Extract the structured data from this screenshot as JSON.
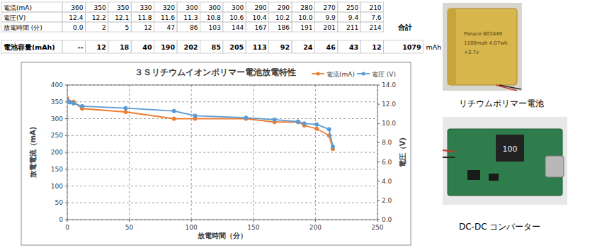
{
  "table": {
    "rows": [
      {
        "label": "電流(mA)",
        "cells": [
          "360",
          "350",
          "350",
          "330",
          "320",
          "300",
          "300",
          "300",
          "290",
          "290",
          "280",
          "270",
          "250",
          "210"
        ]
      },
      {
        "label": "電圧(V)",
        "cells": [
          "12.4",
          "12.2",
          "12.1",
          "11.8",
          "11.6",
          "11.3",
          "10.8",
          "10.6",
          "10.4",
          "10.2",
          "10.0",
          "9.9",
          "9.4",
          "7.6"
        ]
      },
      {
        "label": "放電時間 (分)",
        "cells": [
          "0.0",
          "2",
          "5",
          "12",
          "47",
          "86",
          "103",
          "144",
          "167",
          "186",
          "191",
          "201",
          "211",
          "214"
        ]
      },
      {
        "label": "電池容量(mAh)",
        "cells": [
          "--",
          "12",
          "18",
          "40",
          "190",
          "202",
          "85",
          "205",
          "113",
          "92",
          "24",
          "46",
          "43",
          "12"
        ]
      }
    ],
    "total_label": "合計",
    "total_value": "1079",
    "total_unit": "mAh"
  },
  "chart_data": {
    "type": "line",
    "title": "３Ｓリチウムイオンポリマー電池放電特性",
    "x_label": "放電時間（分）",
    "y_label": "放電電流（mA)",
    "y2_label": "電圧（V)",
    "x": [
      0,
      2,
      5,
      12,
      47,
      86,
      103,
      144,
      167,
      186,
      191,
      201,
      211,
      214
    ],
    "xlim": [
      0,
      250
    ],
    "xticks": [
      0,
      50,
      100,
      150,
      200,
      250
    ],
    "ylim": [
      0,
      400
    ],
    "yticks": [
      0,
      50,
      100,
      150,
      200,
      250,
      300,
      350,
      400
    ],
    "y2lim": [
      0,
      14
    ],
    "y2ticks": [
      {
        "value": 0,
        "label": "0.0"
      },
      {
        "value": 2,
        "label": "2.0"
      },
      {
        "value": 4,
        "label": "4.0"
      },
      {
        "value": 6,
        "label": "6.0"
      },
      {
        "value": 8,
        "label": "8.0"
      },
      {
        "value": 10,
        "label": "10.0"
      },
      {
        "value": 12,
        "label": "12.0"
      },
      {
        "value": 14,
        "label": "14.0"
      }
    ],
    "grid": true,
    "legend": "top-right",
    "series": [
      {
        "name": "電流(mA)",
        "color": "#ed7d31",
        "marker": "circle",
        "values": [
          360,
          350,
          350,
          330,
          320,
          300,
          300,
          300,
          290,
          290,
          280,
          270,
          250,
          210
        ]
      },
      {
        "name": "電圧 (V)",
        "color": "#5b9bd5",
        "marker": "circle",
        "axis": "y2",
        "values": [
          12.4,
          12.2,
          12.1,
          11.8,
          11.6,
          11.3,
          10.8,
          10.6,
          10.4,
          10.2,
          10.0,
          9.9,
          9.4,
          7.6
        ]
      }
    ]
  },
  "photos": [
    {
      "caption": "リチウムポリマー電池",
      "label": [
        "Panace 603449",
        "1100mah 4.07wh",
        "+3.7v"
      ]
    },
    {
      "caption": "DC-DC コンバーター",
      "label": [
        "100"
      ]
    }
  ]
}
